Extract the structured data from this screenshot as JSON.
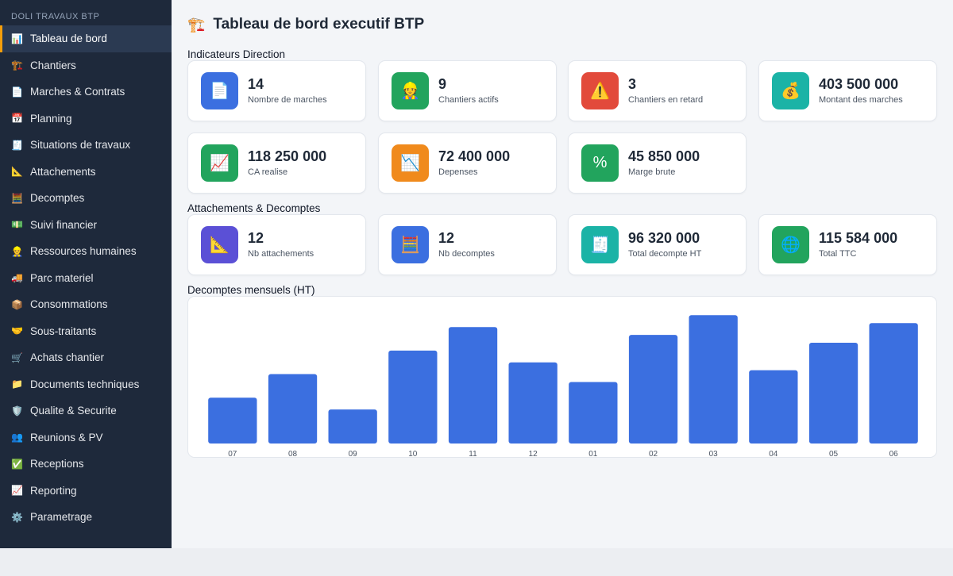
{
  "sidebar": {
    "brand": "DOLI TRAVAUX BTP",
    "items": [
      {
        "label": "Tableau de bord",
        "icon": "📊",
        "active": true
      },
      {
        "label": "Chantiers",
        "icon": "🏗️"
      },
      {
        "label": "Marches & Contrats",
        "icon": "📄"
      },
      {
        "label": "Planning",
        "icon": "📅"
      },
      {
        "label": "Situations de travaux",
        "icon": "🧾"
      },
      {
        "label": "Attachements",
        "icon": "📐"
      },
      {
        "label": "Decomptes",
        "icon": "🧮"
      },
      {
        "label": "Suivi financier",
        "icon": "💵"
      },
      {
        "label": "Ressources humaines",
        "icon": "👷"
      },
      {
        "label": "Parc materiel",
        "icon": "🚚"
      },
      {
        "label": "Consommations",
        "icon": "📦"
      },
      {
        "label": "Sous-traitants",
        "icon": "🤝"
      },
      {
        "label": "Achats chantier",
        "icon": "🛒"
      },
      {
        "label": "Documents techniques",
        "icon": "📁"
      },
      {
        "label": "Qualite & Securite",
        "icon": "🛡️"
      },
      {
        "label": "Reunions & PV",
        "icon": "👥"
      },
      {
        "label": "Receptions",
        "icon": "✅"
      },
      {
        "label": "Reporting",
        "icon": "📈"
      },
      {
        "label": "Parametrage",
        "icon": "⚙️"
      }
    ]
  },
  "page": {
    "title": "Tableau de bord executif BTP",
    "title_icon": "🏗️"
  },
  "sections": {
    "direction": "Indicateurs Direction",
    "attachements": "Attachements & Decomptes",
    "chart": "Decomptes mensuels (HT)"
  },
  "direction_cards": [
    {
      "value": "14",
      "label": "Nombre de marches",
      "icon": "📄",
      "color": "#3b6fe0"
    },
    {
      "value": "9",
      "label": "Chantiers actifs",
      "icon": "👷",
      "color": "#22a45d"
    },
    {
      "value": "3",
      "label": "Chantiers en retard",
      "icon": "⚠️",
      "color": "#e24a3b"
    },
    {
      "value": "403 500 000",
      "label": "Montant des marches",
      "icon": "💰",
      "color": "#1bb3a6"
    },
    {
      "value": "118 250 000",
      "label": "CA realise",
      "icon": "📈",
      "color": "#22a45d"
    },
    {
      "value": "72 400 000",
      "label": "Depenses",
      "icon": "📉",
      "color": "#f08a1c"
    },
    {
      "value": "45 850 000",
      "label": "Marge brute",
      "icon": "%",
      "color": "#22a45d"
    }
  ],
  "attachement_cards": [
    {
      "value": "12",
      "label": "Nb attachements",
      "icon": "📐",
      "color": "#5b50d6"
    },
    {
      "value": "12",
      "label": "Nb decomptes",
      "icon": "🧮",
      "color": "#3b6fe0"
    },
    {
      "value": "96 320 000",
      "label": "Total decompte HT",
      "icon": "🧾",
      "color": "#1bb3a6"
    },
    {
      "value": "115 584 000",
      "label": "Total TTC",
      "icon": "🌐",
      "color": "#22a45d"
    }
  ],
  "colors": {
    "bar": "#3b6fe0",
    "sidebar_bg": "#1e293b",
    "active_accent": "#f59e0b"
  },
  "chart_data": {
    "type": "bar",
    "title": "Decomptes mensuels (HT)",
    "categories": [
      "07",
      "08",
      "09",
      "10",
      "11",
      "12",
      "01",
      "02",
      "03",
      "04",
      "05",
      "06"
    ],
    "values": [
      35,
      53,
      26,
      71,
      89,
      62,
      47,
      83,
      98,
      56,
      77,
      92
    ],
    "ylim": [
      0,
      100
    ],
    "grid": false,
    "legend": "none"
  }
}
